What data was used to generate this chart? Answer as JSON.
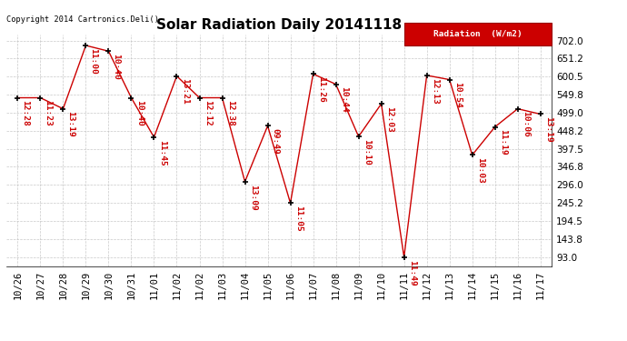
{
  "title": "Solar Radiation Daily 20141118",
  "copyright": "Copyright 2014 Cartronics.Deli()",
  "legend_label": "Radiation  (W/m2)",
  "x_labels": [
    "10/26",
    "10/27",
    "10/28",
    "10/29",
    "10/30",
    "10/31",
    "11/01",
    "11/02",
    "11/02",
    "11/03",
    "11/04",
    "11/05",
    "11/06",
    "11/07",
    "11/08",
    "11/09",
    "11/10",
    "11/11",
    "11/12",
    "11/13",
    "11/14",
    "11/15",
    "11/16",
    "11/17"
  ],
  "x_positions": [
    0,
    1,
    2,
    3,
    4,
    5,
    6,
    7,
    8,
    9,
    10,
    11,
    12,
    13,
    14,
    15,
    16,
    17,
    18,
    19,
    20,
    21,
    22,
    23
  ],
  "y_values": [
    541,
    541,
    510,
    688,
    672,
    541,
    430,
    602,
    541,
    541,
    305,
    462,
    245,
    608,
    579,
    432,
    524,
    93,
    604,
    592,
    380,
    459,
    510,
    495
  ],
  "time_labels": [
    "12:28",
    "11:23",
    "13:19",
    "11:00",
    "10:40",
    "10:40",
    "11:45",
    "13:21",
    "12:12",
    "12:38",
    "13:09",
    "09:49",
    "11:05",
    "11:26",
    "10:44",
    "10:10",
    "12:03",
    "11:49",
    "12:13",
    "10:54",
    "10:03",
    "11:19",
    "10:06",
    "13:19"
  ],
  "yticks": [
    93.0,
    143.8,
    194.5,
    245.2,
    296.0,
    346.8,
    397.5,
    448.2,
    499.0,
    549.8,
    600.5,
    651.2,
    702.0
  ],
  "ymin": 68,
  "ymax": 720,
  "line_color": "#cc0000",
  "marker_color": "#000000",
  "label_color": "#cc0000",
  "bg_color": "#ffffff",
  "grid_color": "#bbbbbb",
  "title_fontsize": 11,
  "axis_fontsize": 7.5,
  "label_fontsize": 6.8,
  "fig_width": 6.9,
  "fig_height": 3.75,
  "fig_dpi": 100
}
